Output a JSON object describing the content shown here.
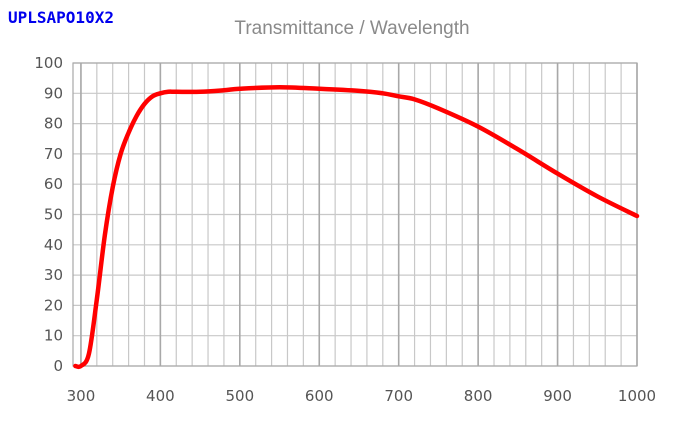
{
  "model": "UPLSAPO10X2",
  "chart_data": {
    "type": "line",
    "title": "Transmittance / Wavelength",
    "xlabel": "",
    "ylabel": "",
    "xlim": [
      290,
      1000
    ],
    "ylim": [
      0,
      100
    ],
    "x_ticks": [
      300,
      400,
      500,
      600,
      700,
      800,
      900,
      1000
    ],
    "y_ticks": [
      0,
      10,
      20,
      30,
      40,
      50,
      60,
      70,
      80,
      90,
      100
    ],
    "x_minor_step": 20,
    "grid": true,
    "series": [
      {
        "name": "Transmittance",
        "color": "#ff0000",
        "x": [
          293,
          300,
          310,
          320,
          330,
          340,
          350,
          360,
          370,
          380,
          390,
          400,
          410,
          420,
          450,
          480,
          500,
          550,
          600,
          650,
          680,
          700,
          720,
          750,
          800,
          850,
          900,
          950,
          1000
        ],
        "y": [
          0,
          0,
          4,
          22,
          43,
          59,
          70,
          77,
          82.5,
          86.5,
          89,
          90,
          90.5,
          90.5,
          90.5,
          91,
          91.5,
          92,
          91.5,
          90.8,
          90,
          89,
          88,
          85,
          79,
          71.5,
          63.5,
          56,
          49.5
        ]
      }
    ]
  }
}
